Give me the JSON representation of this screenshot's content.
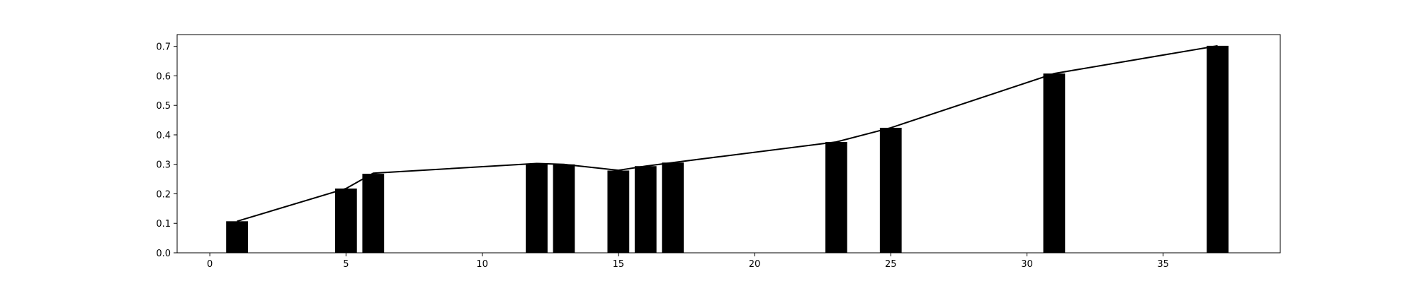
{
  "chart_data": {
    "type": "bar",
    "title": "",
    "xlabel": "",
    "ylabel": "",
    "xlim": [
      -1.2,
      39.3
    ],
    "ylim": [
      0,
      0.74
    ],
    "xticks": [
      0,
      5,
      10,
      15,
      20,
      25,
      30,
      35
    ],
    "xtick_labels": [
      "0",
      "5",
      "10",
      "15",
      "20",
      "25",
      "30",
      "35"
    ],
    "yticks": [
      0.0,
      0.1,
      0.2,
      0.3,
      0.4,
      0.5,
      0.6,
      0.7
    ],
    "ytick_labels": [
      "0.0",
      "0.1",
      "0.2",
      "0.3",
      "0.4",
      "0.5",
      "0.6",
      "0.7"
    ],
    "grid": false,
    "bar_color": "#000000",
    "bar_width": 0.8,
    "x": [
      1,
      5,
      6,
      12,
      13,
      15,
      16,
      17,
      23,
      25,
      31,
      37
    ],
    "values": [
      0.107,
      0.218,
      0.268,
      0.303,
      0.3,
      0.279,
      0.294,
      0.306,
      0.376,
      0.424,
      0.608,
      0.702
    ],
    "line": {
      "color": "#000000",
      "x": [
        1,
        5,
        6,
        12,
        13,
        15,
        16,
        17,
        23,
        25,
        31,
        37
      ],
      "y": [
        0.107,
        0.218,
        0.27,
        0.303,
        0.3,
        0.28,
        0.294,
        0.306,
        0.376,
        0.424,
        0.608,
        0.702
      ]
    }
  }
}
